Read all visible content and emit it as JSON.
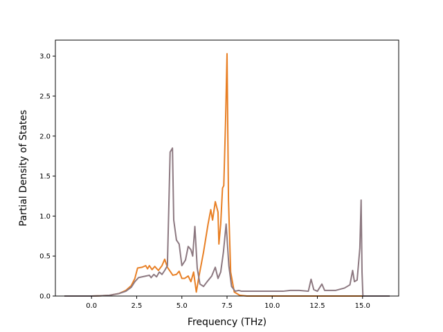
{
  "chart_data": {
    "type": "line",
    "title": "",
    "xlabel": "Frequency (THz)",
    "ylabel": "Partial Density of States",
    "xlim": [
      -2.0,
      17.0
    ],
    "ylim": [
      0.0,
      3.2
    ],
    "xticks": [
      0.0,
      2.5,
      5.0,
      7.5,
      10.0,
      12.5,
      15.0
    ],
    "xtick_labels": [
      "0.0",
      "2.5",
      "5.0",
      "7.5",
      "10.0",
      "12.5",
      "15.0"
    ],
    "yticks": [
      0.0,
      0.5,
      1.0,
      1.5,
      2.0,
      2.5,
      3.0
    ],
    "ytick_labels": [
      "0.0",
      "0.5",
      "1.0",
      "1.5",
      "2.0",
      "2.5",
      "3.0"
    ],
    "grid": false,
    "legend": "none",
    "series": [
      {
        "color": "#e87f24",
        "points": [
          [
            -1.5,
            0.0
          ],
          [
            0.0,
            0.0
          ],
          [
            0.5,
            0.003
          ],
          [
            1.0,
            0.01
          ],
          [
            1.5,
            0.03
          ],
          [
            1.9,
            0.07
          ],
          [
            2.2,
            0.13
          ],
          [
            2.4,
            0.22
          ],
          [
            2.55,
            0.35
          ],
          [
            2.8,
            0.36
          ],
          [
            3.0,
            0.38
          ],
          [
            3.1,
            0.34
          ],
          [
            3.2,
            0.38
          ],
          [
            3.35,
            0.33
          ],
          [
            3.5,
            0.37
          ],
          [
            3.7,
            0.32
          ],
          [
            3.9,
            0.38
          ],
          [
            4.05,
            0.46
          ],
          [
            4.2,
            0.36
          ],
          [
            4.35,
            0.31
          ],
          [
            4.5,
            0.26
          ],
          [
            4.7,
            0.27
          ],
          [
            4.85,
            0.31
          ],
          [
            5.0,
            0.22
          ],
          [
            5.15,
            0.22
          ],
          [
            5.35,
            0.25
          ],
          [
            5.5,
            0.18
          ],
          [
            5.65,
            0.3
          ],
          [
            5.8,
            0.05
          ],
          [
            5.95,
            0.25
          ],
          [
            6.2,
            0.55
          ],
          [
            6.45,
            0.9
          ],
          [
            6.6,
            1.08
          ],
          [
            6.7,
            0.95
          ],
          [
            6.85,
            1.18
          ],
          [
            7.0,
            1.05
          ],
          [
            7.05,
            0.65
          ],
          [
            7.15,
            0.9
          ],
          [
            7.25,
            1.35
          ],
          [
            7.32,
            1.38
          ],
          [
            7.42,
            2.2
          ],
          [
            7.5,
            3.03
          ],
          [
            7.58,
            1.2
          ],
          [
            7.7,
            0.3
          ],
          [
            7.9,
            0.05
          ],
          [
            8.2,
            0.01
          ],
          [
            8.6,
            0.0
          ],
          [
            11.0,
            0.0
          ],
          [
            14.9,
            0.0
          ],
          [
            16.5,
            0.0
          ]
        ]
      },
      {
        "color": "#8c7880",
        "points": [
          [
            -1.5,
            0.0
          ],
          [
            0.0,
            0.0
          ],
          [
            0.5,
            0.003
          ],
          [
            1.0,
            0.01
          ],
          [
            1.5,
            0.03
          ],
          [
            1.9,
            0.06
          ],
          [
            2.2,
            0.11
          ],
          [
            2.4,
            0.18
          ],
          [
            2.6,
            0.23
          ],
          [
            2.8,
            0.24
          ],
          [
            3.0,
            0.25
          ],
          [
            3.2,
            0.26
          ],
          [
            3.3,
            0.23
          ],
          [
            3.45,
            0.27
          ],
          [
            3.6,
            0.24
          ],
          [
            3.75,
            0.3
          ],
          [
            3.9,
            0.27
          ],
          [
            4.05,
            0.32
          ],
          [
            4.2,
            0.38
          ],
          [
            4.35,
            1.8
          ],
          [
            4.48,
            1.85
          ],
          [
            4.55,
            0.95
          ],
          [
            4.7,
            0.7
          ],
          [
            4.85,
            0.65
          ],
          [
            5.0,
            0.38
          ],
          [
            5.2,
            0.45
          ],
          [
            5.35,
            0.62
          ],
          [
            5.5,
            0.58
          ],
          [
            5.6,
            0.5
          ],
          [
            5.72,
            0.87
          ],
          [
            5.85,
            0.35
          ],
          [
            6.0,
            0.15
          ],
          [
            6.2,
            0.12
          ],
          [
            6.4,
            0.18
          ],
          [
            6.65,
            0.25
          ],
          [
            6.85,
            0.36
          ],
          [
            7.0,
            0.22
          ],
          [
            7.15,
            0.3
          ],
          [
            7.3,
            0.55
          ],
          [
            7.45,
            0.9
          ],
          [
            7.6,
            0.38
          ],
          [
            7.75,
            0.12
          ],
          [
            7.95,
            0.06
          ],
          [
            8.15,
            0.07
          ],
          [
            8.3,
            0.06
          ],
          [
            9.0,
            0.06
          ],
          [
            10.0,
            0.06
          ],
          [
            10.6,
            0.06
          ],
          [
            11.0,
            0.07
          ],
          [
            11.5,
            0.07
          ],
          [
            12.0,
            0.06
          ],
          [
            12.15,
            0.21
          ],
          [
            12.3,
            0.08
          ],
          [
            12.5,
            0.06
          ],
          [
            12.75,
            0.15
          ],
          [
            12.9,
            0.07
          ],
          [
            13.5,
            0.07
          ],
          [
            14.0,
            0.1
          ],
          [
            14.3,
            0.14
          ],
          [
            14.45,
            0.32
          ],
          [
            14.55,
            0.18
          ],
          [
            14.7,
            0.2
          ],
          [
            14.85,
            0.6
          ],
          [
            14.92,
            1.2
          ],
          [
            14.97,
            0.3
          ],
          [
            15.02,
            0.0
          ],
          [
            16.5,
            0.0
          ]
        ]
      }
    ]
  }
}
